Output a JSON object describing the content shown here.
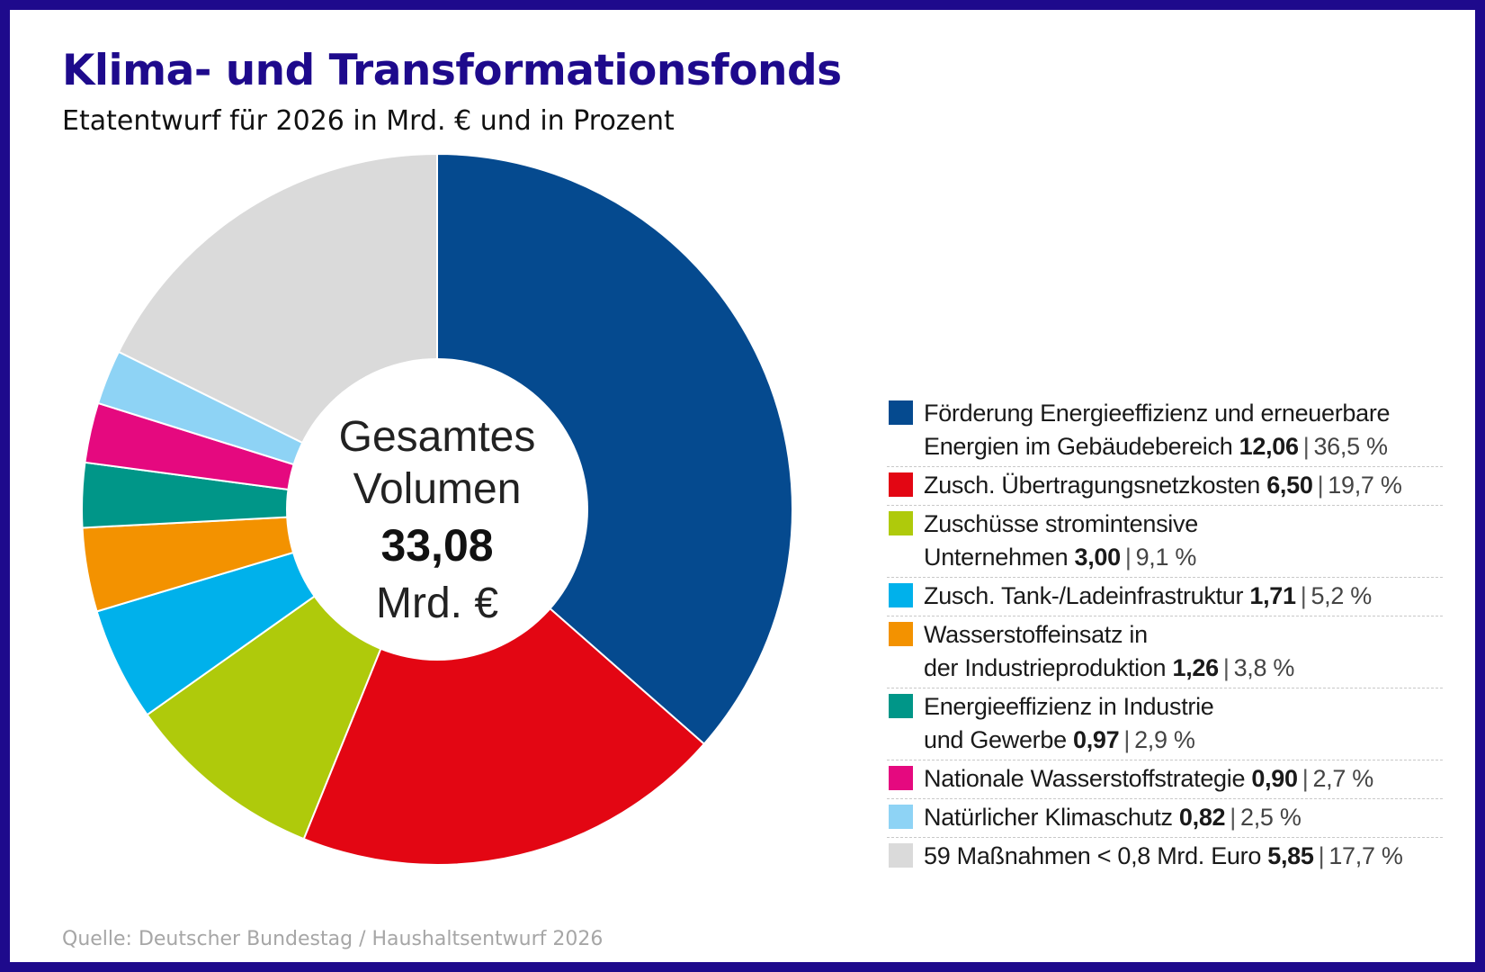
{
  "title": "Klima- und Transformationsfonds",
  "subtitle": "Etatentwurf für 2026 in Mrd. € und in Prozent",
  "source": "Quelle: Deutscher Bundestag / Haushaltsentwurf 2026",
  "chart_data": {
    "type": "pie",
    "title": "Klima- und Transformationsfonds",
    "subtitle": "Etatentwurf für 2026 in Mrd. € und in Prozent",
    "center_label": {
      "line1": "Gesamtes",
      "line2": "Volumen",
      "value": "33,08",
      "unit": "Mrd. €"
    },
    "total": 33.08,
    "legend_position": "right",
    "slices": [
      {
        "label_lines": [
          "Förderung Energieeffizienz und erneuerbare",
          "Energien im Gebäudebereich"
        ],
        "value": 12.06,
        "value_text": "12,06",
        "percent": 36.5,
        "percent_text": "36,5 %",
        "color": "#054a8f"
      },
      {
        "label_lines": [
          "Zusch. Übertragungsnetzkosten"
        ],
        "value": 6.5,
        "value_text": "6,50",
        "percent": 19.7,
        "percent_text": "19,7 %",
        "color": "#e30613"
      },
      {
        "label_lines": [
          "Zuschüsse stromintensive",
          "Unternehmen"
        ],
        "value": 3.0,
        "value_text": "3,00",
        "percent": 9.1,
        "percent_text": "9,1 %",
        "color": "#afca0b"
      },
      {
        "label_lines": [
          "Zusch. Tank-/Ladeinfrastruktur"
        ],
        "value": 1.71,
        "value_text": "1,71",
        "percent": 5.2,
        "percent_text": "5,2 %",
        "color": "#00b1eb"
      },
      {
        "label_lines": [
          "Wasserstoffeinsatz in",
          "der Industrieproduktion"
        ],
        "value": 1.26,
        "value_text": "1,26",
        "percent": 3.8,
        "percent_text": "3,8 %",
        "color": "#f39200"
      },
      {
        "label_lines": [
          "Energieeffizienz in Industrie",
          "und Gewerbe"
        ],
        "value": 0.97,
        "value_text": "0,97",
        "percent": 2.9,
        "percent_text": "2,9 %",
        "color": "#009688"
      },
      {
        "label_lines": [
          "Nationale Wasserstoffstrategie"
        ],
        "value": 0.9,
        "value_text": "0,90",
        "percent": 2.7,
        "percent_text": "2,7 %",
        "color": "#e5097f"
      },
      {
        "label_lines": [
          "Natürlicher Klimaschutz"
        ],
        "value": 0.82,
        "value_text": "0,82",
        "percent": 2.5,
        "percent_text": "2,5 %",
        "color": "#8ed3f5"
      },
      {
        "label_lines": [
          "59 Maßnahmen < 0,8 Mrd. Euro"
        ],
        "value": 5.85,
        "value_text": "5,85",
        "percent": 17.7,
        "percent_text": "17,7 %",
        "color": "#dadada"
      }
    ]
  }
}
